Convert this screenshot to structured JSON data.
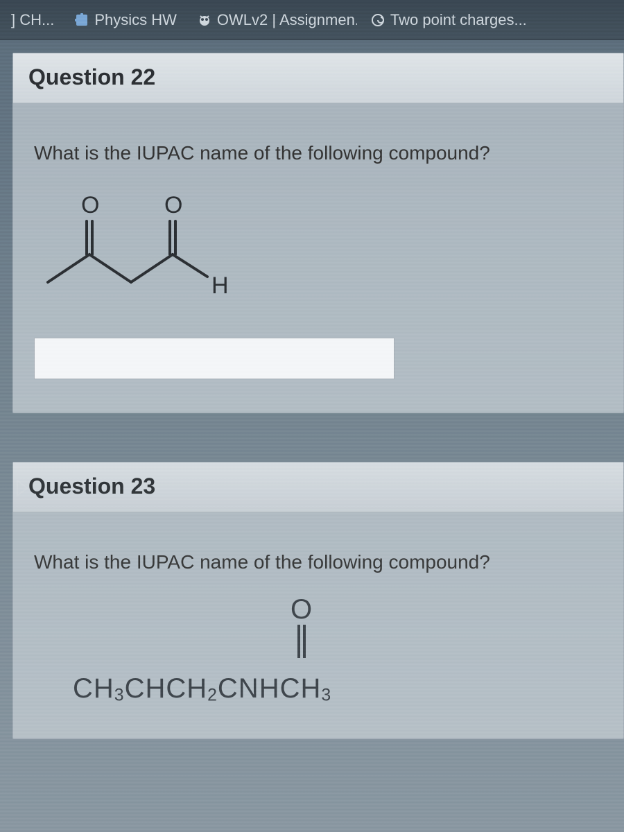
{
  "colors": {
    "tabstrip_bg_top": "#3a4752",
    "tabstrip_bg_bottom": "#44525e",
    "tab_text": "#cfd7dd",
    "page_bg_top": "#5a6b7a",
    "page_bg_bottom": "#8a98a2",
    "card_bg": "rgba(230,235,238,0.55)",
    "card_border": "#b7bec4",
    "header_bg_top": "#dfe4e8",
    "header_bg_bottom": "#cfd6db",
    "title_text": "#2b2f33",
    "body_text": "#333333",
    "bond_stroke": "#2b2f33",
    "input_border": "#a8b0b7",
    "input_bg": "#f4f6f8",
    "formula_text": "#3a4046"
  },
  "tabs": [
    {
      "label": "] CH...",
      "icon": "generic"
    },
    {
      "label": "Physics HW",
      "icon": "puzzle"
    },
    {
      "label": "OWLv2 | Assignmen...",
      "icon": "owl"
    },
    {
      "label": "Two point charges...",
      "icon": "spiral"
    }
  ],
  "q22": {
    "title": "Question 22",
    "prompt": "What is the IUPAC name of the following compound?",
    "answer_value": "",
    "structure": {
      "type": "chemical-line-structure",
      "description": "3-oxobutanal skeletal structure",
      "atom_labels": [
        "O",
        "O",
        "H"
      ],
      "bond_stroke": "#2b2f33",
      "bond_width": 4,
      "dbl_gap": 7
    }
  },
  "q23": {
    "title": "Question 23",
    "prompt": "What is the IUPAC name of the following compound?",
    "formula_html": "CH<sub>3</sub>CHCH<sub>2</sub>CNHCH<sub>3</sub>",
    "carbonyl_label": "O"
  }
}
